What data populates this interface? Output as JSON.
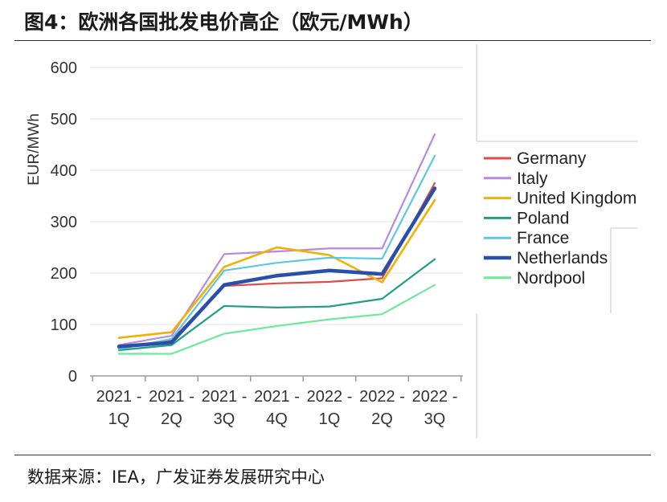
{
  "figure": {
    "title": "图4：欧洲各国批发电价高企（欧元/MWh）",
    "source": "数据来源：IEA，广发证券发展研究中心"
  },
  "chart_data": {
    "type": "line",
    "ylabel": "EUR/MWh",
    "xlabel": "",
    "ylim": [
      0,
      600
    ],
    "yticks": [
      0,
      100,
      200,
      300,
      400,
      500,
      600
    ],
    "grid": true,
    "legend_position": "right",
    "categories": [
      [
        "2021 -",
        "1Q"
      ],
      [
        "2021 -",
        "2Q"
      ],
      [
        "2021 -",
        "3Q"
      ],
      [
        "2021 -",
        "4Q"
      ],
      [
        "2022 -",
        "1Q"
      ],
      [
        "2022 -",
        "2Q"
      ],
      [
        "2022 -",
        "3Q"
      ]
    ],
    "series": [
      {
        "name": "Germany",
        "color": "#e04a4a",
        "width": 2.2,
        "values": [
          55,
          70,
          175,
          180,
          183,
          190,
          375
        ]
      },
      {
        "name": "Italy",
        "color": "#b889e0",
        "width": 2.2,
        "values": [
          60,
          78,
          237,
          242,
          248,
          248,
          470
        ]
      },
      {
        "name": "United Kingdom",
        "color": "#f2b000",
        "width": 2.6,
        "values": [
          74,
          85,
          212,
          250,
          235,
          182,
          342
        ]
      },
      {
        "name": "Poland",
        "color": "#1f9e83",
        "width": 2.2,
        "values": [
          50,
          60,
          136,
          133,
          135,
          150,
          227
        ]
      },
      {
        "name": "France",
        "color": "#5cc7e4",
        "width": 2.2,
        "values": [
          52,
          72,
          205,
          220,
          230,
          228,
          428
        ]
      },
      {
        "name": "Netherlands",
        "color": "#2a4faa",
        "width": 4.5,
        "values": [
          57,
          65,
          177,
          195,
          205,
          198,
          365
        ]
      },
      {
        "name": "Nordpool",
        "color": "#6ee99a",
        "width": 2.2,
        "values": [
          43,
          43,
          82,
          97,
          110,
          120,
          177
        ]
      }
    ]
  }
}
